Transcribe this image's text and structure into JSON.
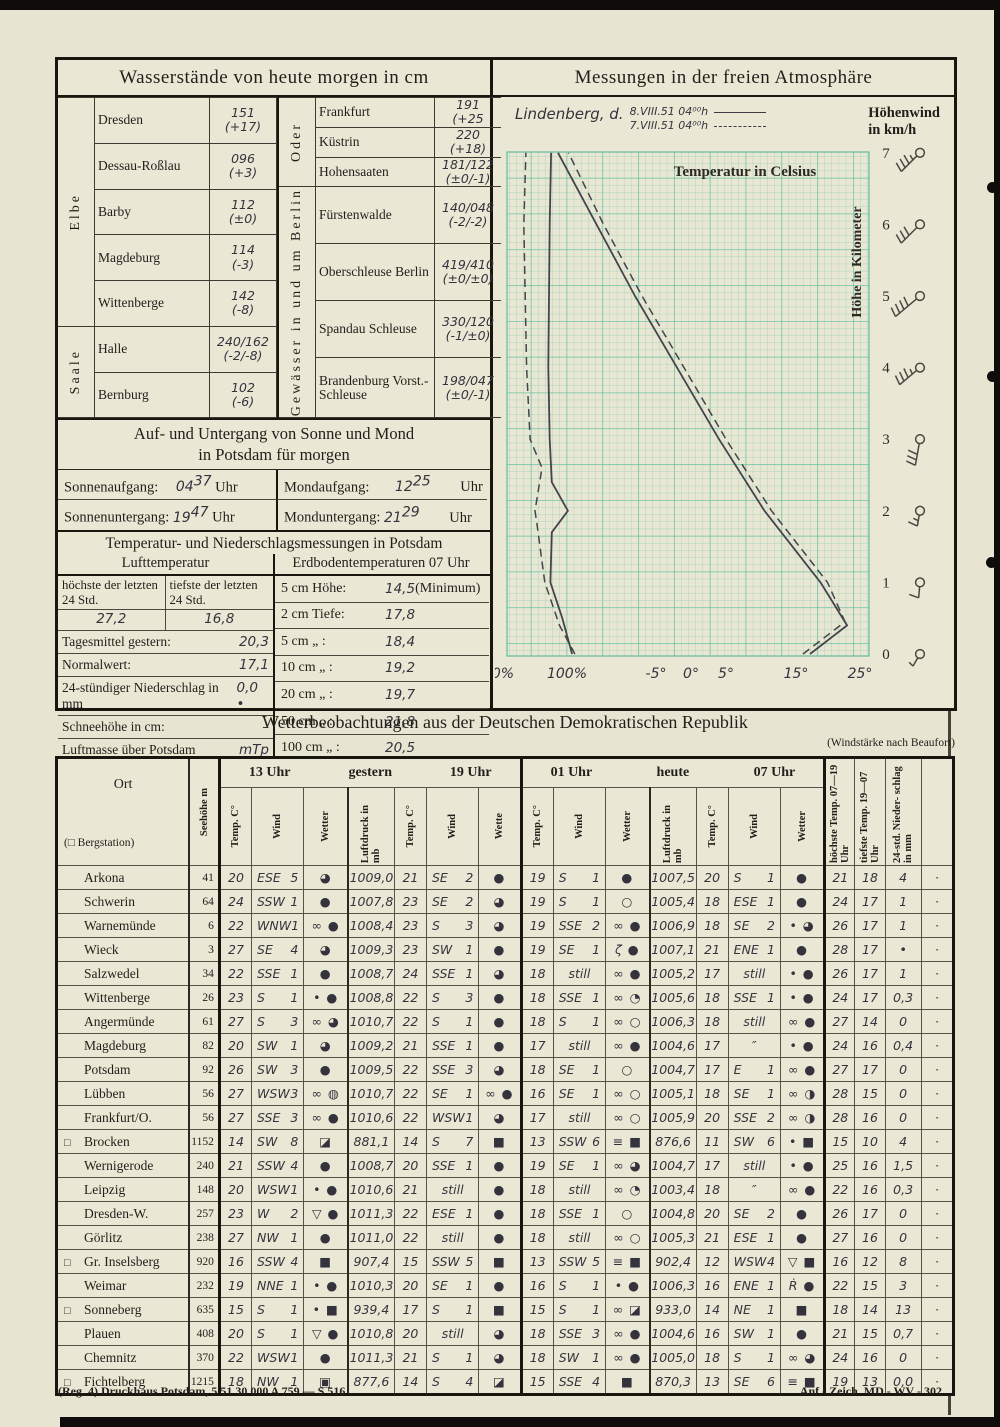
{
  "water": {
    "title": "Wasserstände von heute morgen in cm",
    "groups_left": [
      {
        "river": "Elbe",
        "stations": [
          {
            "name": "Dresden",
            "value": "151",
            "change": "(+17)"
          },
          {
            "name": "Dessau-Roßlau",
            "value": "096",
            "change": "(+3)"
          },
          {
            "name": "Barby",
            "value": "112",
            "change": "(±0)"
          },
          {
            "name": "Magdeburg",
            "value": "114",
            "change": "(-3)"
          },
          {
            "name": "Wittenberge",
            "value": "142",
            "change": "(-8)"
          }
        ]
      },
      {
        "river": "Saale",
        "stations": [
          {
            "name": "Halle",
            "value": "240/162",
            "change": "(-2/-8)"
          },
          {
            "name": "Bernburg",
            "value": "102",
            "change": "(-6)"
          }
        ]
      }
    ],
    "groups_right": [
      {
        "river": "Oder",
        "stations": [
          {
            "name": "Frankfurt",
            "value": "191",
            "change": "(+25"
          },
          {
            "name": "Küstrin",
            "value": "220",
            "change": "(+18)"
          },
          {
            "name": "Hohensaaten",
            "value": "181/122",
            "change": "(±0/-1)"
          }
        ]
      },
      {
        "river": "Gewässer in und um Berlin",
        "stations": [
          {
            "name": "Fürstenwalde",
            "value": "140/048",
            "change": "(-2/-2)"
          },
          {
            "name": "Oberschleuse Berlin",
            "value": "419/410",
            "change": "(±0/±0)"
          },
          {
            "name": "Spandau Schleuse",
            "value": "330/120",
            "change": "(-1/±0)"
          },
          {
            "name": "Brandenburg Vorst.-Schleuse",
            "value": "198/047",
            "change": "(±0/-1)"
          }
        ]
      }
    ]
  },
  "sunmoon": {
    "title_line1": "Auf- und Untergang von Sonne und Mond",
    "title_line2": "in Potsdam für morgen",
    "entries": [
      {
        "label": "Sonnenaufgang:",
        "value": "04",
        "sup": "37",
        "unit": "Uhr"
      },
      {
        "label": "Mondaufgang:",
        "value": "12",
        "sup": "25",
        "unit": "Uhr"
      },
      {
        "label": "Sonnenuntergang:",
        "value": "19",
        "sup": "47",
        "unit": "Uhr"
      },
      {
        "label": "Monduntergang:",
        "value": "21",
        "sup": "29",
        "unit": "Uhr"
      }
    ]
  },
  "potsdam": {
    "title": "Temperatur- und Niederschlagsmessungen in Potsdam",
    "sub_left": "Lufttemperatur",
    "sub_right": "Erdbodentemperaturen 07 Uhr",
    "max_head": "höchste der letzten 24 Std.",
    "min_head": "tiefste der letzten 24 Std.",
    "max_val": "27,2",
    "min_val": "16,8",
    "left_rows": [
      {
        "label": "Tagesmittel gestern:",
        "value": "20,3"
      },
      {
        "label": "Normalwert:",
        "value": "17,1"
      },
      {
        "label": "24-stündiger Niederschlag in mm",
        "value": "0,0 •"
      },
      {
        "label": "Schneehöhe in cm:",
        "value": "–"
      },
      {
        "label": "Luftmasse über Potsdam",
        "value": "mTp"
      }
    ],
    "soil_rows": [
      {
        "label": "5 cm Höhe:",
        "value": "14,5",
        "suffix": "(Minimum)"
      },
      {
        "label": "2 cm Tiefe:",
        "value": "17,8",
        "suffix": ""
      },
      {
        "label": "5 cm  „  :",
        "value": "18,4",
        "suffix": ""
      },
      {
        "label": "10 cm  „  :",
        "value": "19,2",
        "suffix": ""
      },
      {
        "label": "20 cm  „  :",
        "value": "19,7",
        "suffix": ""
      },
      {
        "label": "50 cm  „  :",
        "value": "21,8",
        "suffix": ""
      },
      {
        "label": "100 cm  „  :",
        "value": "20,5",
        "suffix": ""
      }
    ]
  },
  "chart_data": {
    "type": "line",
    "panel_title": "Messungen in der freien Atmosphäre",
    "station": "Lindenberg, d.",
    "legend": [
      {
        "label": "8.VIII.51 04⁰⁰h",
        "style": "solid"
      },
      {
        "label": "7.VIII.51 04⁰⁰h",
        "style": "dashed"
      }
    ],
    "right_header": "Höhenwind in km/h",
    "annotation": "Temperatur in Celsius",
    "ylabel": "Höhe in Kilometer",
    "y_ticks": [
      7,
      6,
      5,
      4,
      3,
      2,
      1,
      0
    ],
    "x_ticks_humidity": [
      "0%",
      "100%"
    ],
    "x_ticks_temp": [
      "-5°",
      "0°",
      "5°",
      "15°",
      "25°"
    ],
    "humidity_range_pct": [
      0,
      100
    ],
    "temp_range_c": [
      -26,
      25
    ],
    "height_range_km": [
      0,
      7
    ],
    "series": [
      {
        "name": "Temperatur 8.VIII.51",
        "style": "solid",
        "km": [
          0,
          0.4,
          1,
          2,
          3,
          4,
          5,
          6,
          7
        ],
        "celsius": [
          17,
          22.3,
          18.5,
          10.5,
          4,
          -2,
          -8,
          -13.5,
          -19
        ]
      },
      {
        "name": "Temperatur 7.VIII.51",
        "style": "dashed",
        "km": [
          0,
          0.45,
          1,
          2,
          3,
          4,
          5,
          6,
          7
        ],
        "celsius": [
          16,
          22,
          19.5,
          11.5,
          5,
          -1,
          -7,
          -12.5,
          -17.5
        ]
      },
      {
        "name": "Feuchte 8.VIII.51",
        "style": "solid",
        "km": [
          0,
          0.5,
          1,
          1.7,
          2,
          2.4,
          3,
          4,
          5,
          6,
          7
        ],
        "percent": [
          93,
          79,
          62,
          64,
          87,
          64,
          61,
          59,
          60,
          61,
          63
        ]
      },
      {
        "name": "Feuchte 7.VIII.51",
        "style": "dashed",
        "km": [
          0,
          0.4,
          1,
          1.8,
          2,
          2.6,
          3,
          4,
          5,
          6,
          7
        ],
        "percent": [
          97,
          75,
          54,
          43,
          40,
          50,
          33,
          28,
          26,
          24,
          27
        ]
      }
    ],
    "wind_barbs": [
      {
        "km": 7,
        "angle": 135,
        "feathers": 3,
        "half": true
      },
      {
        "km": 6,
        "angle": 135,
        "feathers": 3,
        "half": false
      },
      {
        "km": 5,
        "angle": 140,
        "feathers": 4,
        "half": false
      },
      {
        "km": 4,
        "angle": 140,
        "feathers": 3,
        "half": true
      },
      {
        "km": 3,
        "angle": 100,
        "feathers": 3,
        "half": false
      },
      {
        "km": 2,
        "angle": 100,
        "feathers": 1,
        "half": true
      },
      {
        "km": 1,
        "angle": 95,
        "feathers": 1,
        "half": false
      },
      {
        "km": 0,
        "angle": 120,
        "feathers": 0,
        "half": true
      }
    ],
    "colors": {
      "grid_minor": "#93cfb5",
      "grid_major": "#5fbf9e",
      "curve": "#45434b",
      "ink": "#26241d"
    }
  },
  "weather_table": {
    "title": "Wetterbeobachtungen aus der Deutschen Demokratischen Republik",
    "note": "(Windstärke nach Beaufort)",
    "ort_head": "Ort",
    "ort_sub": "(□ Bergstation)",
    "seehoehe_head": "Seehöhe m",
    "group1": [
      "13 Uhr",
      "gestern",
      "19 Uhr"
    ],
    "group2": [
      "01 Uhr",
      "heute",
      "07 Uhr"
    ],
    "col_heads": [
      "Temp. C°",
      "Wind",
      "Wetter",
      "Luftdruck in mb",
      "Temp. C°",
      "Wind",
      "Wette",
      "Temp. C°",
      "Wind",
      "Wetter",
      "Luftdruck in mb",
      "Temp. C°",
      "Wind",
      "Wetter"
    ],
    "tail_heads": [
      "höchste Temp. 07—19 Uhr",
      "tiefste Temp. 19—07 Uhr",
      "24-std. Nieder- schlag in mm",
      ""
    ],
    "rows": [
      {
        "flag": false,
        "ort": "Arkona",
        "see": "41",
        "c": [
          "20",
          "ESE 5",
          "◕",
          "1009,0",
          "21",
          "SE 2",
          "●",
          "19",
          "S 1",
          "●",
          "1007,5",
          "20",
          "S 1",
          "●",
          "21",
          "18",
          "4",
          "·"
        ]
      },
      {
        "flag": false,
        "ort": "Schwerin",
        "see": "64",
        "c": [
          "24",
          "SSW 1",
          "●",
          "1007,8",
          "23",
          "SE 2",
          "◕",
          "19",
          "S 1",
          "○",
          "1005,4",
          "18",
          "ESE 1",
          "●",
          "24",
          "17",
          "1",
          "·"
        ]
      },
      {
        "flag": false,
        "ort": "Warnemünde",
        "see": "6",
        "c": [
          "22",
          "WNW 1",
          "∞ ●",
          "1008,4",
          "23",
          "S 3",
          "◕",
          "19",
          "SSE 2",
          "∞ ●",
          "1006,9",
          "18",
          "SE 2",
          "• ◕",
          "26",
          "17",
          "1",
          "·"
        ]
      },
      {
        "flag": false,
        "ort": "Wieck",
        "see": "3",
        "c": [
          "27",
          "SE 4",
          "◕",
          "1009,3",
          "23",
          "SW 1",
          "●",
          "19",
          "SE 1",
          "ζ ●",
          "1007,1",
          "21",
          "ENE 1",
          "●",
          "28",
          "17",
          "•",
          "·"
        ]
      },
      {
        "flag": false,
        "ort": "Salzwedel",
        "see": "34",
        "c": [
          "22",
          "SSE 1",
          "●",
          "1008,7",
          "24",
          "SSE 1",
          "◕",
          "18",
          "still",
          "∞ ●",
          "1005,2",
          "17",
          "still",
          "• ●",
          "26",
          "17",
          "1",
          "·"
        ]
      },
      {
        "flag": false,
        "ort": "Wittenberge",
        "see": "26",
        "c": [
          "23",
          "S 1",
          "• ●",
          "1008,8",
          "22",
          "S 3",
          "●",
          "18",
          "SSE 1",
          "∞ ◔",
          "1005,6",
          "18",
          "SSE 1",
          "• ●",
          "24",
          "17",
          "0,3",
          "·"
        ]
      },
      {
        "flag": false,
        "ort": "Angermünde",
        "see": "61",
        "c": [
          "27",
          "S 3",
          "∞ ◕",
          "1010,7",
          "22",
          "S 1",
          "●",
          "18",
          "S 1",
          "∞ ○",
          "1006,3",
          "18",
          "still",
          "∞ ●",
          "27",
          "14",
          "0",
          "·"
        ]
      },
      {
        "flag": false,
        "ort": "Magdeburg",
        "see": "82",
        "c": [
          "20",
          "SW 1",
          "◕",
          "1009,2",
          "21",
          "SSE 1",
          "●",
          "17",
          "still",
          "∞ ●",
          "1004,6",
          "17",
          "″",
          "• ●",
          "24",
          "16",
          "0,4",
          "·"
        ]
      },
      {
        "flag": false,
        "ort": "Potsdam",
        "see": "92",
        "c": [
          "26",
          "SW 3",
          "●",
          "1009,5",
          "22",
          "SSE 3",
          "◕",
          "18",
          "SE 1",
          "○",
          "1004,7",
          "17",
          "E 1",
          "∞ ●",
          "27",
          "17",
          "0",
          "·"
        ]
      },
      {
        "flag": false,
        "ort": "Lübben",
        "see": "56",
        "c": [
          "27",
          "WSW 3",
          "∞ ◍",
          "1010,7",
          "22",
          "SE 1",
          "∞ ●",
          "16",
          "SE 1",
          "∞ ○",
          "1005,1",
          "18",
          "SE 1",
          "∞ ◑",
          "28",
          "15",
          "0",
          "·"
        ]
      },
      {
        "flag": false,
        "ort": "Frankfurt/O.",
        "see": "56",
        "c": [
          "27",
          "SSE 3",
          "∞ ●",
          "1010,6",
          "22",
          "WSW 1",
          "◕",
          "17",
          "still",
          "∞ ○",
          "1005,9",
          "20",
          "SSE 2",
          "∞ ◑",
          "28",
          "16",
          "0",
          "·"
        ]
      },
      {
        "flag": true,
        "ort": "Brocken",
        "see": "1152",
        "c": [
          "14",
          "SW 8",
          "◪",
          "881,1",
          "14",
          "S 7",
          "■",
          "13",
          "SSW 6",
          "≡ ■",
          "876,6",
          "11",
          "SW 6",
          "• ■",
          "15",
          "10",
          "4",
          "·"
        ]
      },
      {
        "flag": false,
        "ort": "Wernigerode",
        "see": "240",
        "c": [
          "21",
          "SSW 4",
          "●",
          "1008,7",
          "20",
          "SSE 1",
          "●",
          "19",
          "SE 1",
          "∞ ◕",
          "1004,7",
          "17",
          "still",
          "• ●",
          "25",
          "16",
          "1,5",
          "·"
        ]
      },
      {
        "flag": false,
        "ort": "Leipzig",
        "see": "148",
        "c": [
          "20",
          "WSW 1",
          "• ●",
          "1010,6",
          "21",
          "still",
          "●",
          "18",
          "still",
          "∞ ◔",
          "1003,4",
          "18",
          "″",
          "∞ ●",
          "22",
          "16",
          "0,3",
          "·"
        ]
      },
      {
        "flag": false,
        "ort": "Dresden-W.",
        "see": "257",
        "c": [
          "23",
          "W 2",
          "▽ ●",
          "1011,3",
          "22",
          "ESE 1",
          "●",
          "18",
          "SSE 1",
          "○",
          "1004,8",
          "20",
          "SE 2",
          "●",
          "26",
          "17",
          "0",
          "·"
        ]
      },
      {
        "flag": false,
        "ort": "Görlitz",
        "see": "238",
        "c": [
          "27",
          "NW 1",
          "●",
          "1011,0",
          "22",
          "still",
          "●",
          "18",
          "still",
          "∞ ○",
          "1005,3",
          "21",
          "ESE 1",
          "●",
          "27",
          "16",
          "0",
          "·"
        ]
      },
      {
        "flag": true,
        "ort": "Gr. Inselsberg",
        "see": "920",
        "c": [
          "16",
          "SSW 4",
          "■",
          "907,4",
          "15",
          "SSW 5",
          "■",
          "13",
          "SSW 5",
          "≡ ■",
          "902,4",
          "12",
          "WSW 4",
          "▽ ■",
          "16",
          "12",
          "8",
          "·"
        ]
      },
      {
        "flag": false,
        "ort": "Weimar",
        "see": "232",
        "c": [
          "19",
          "NNE 1",
          "• ●",
          "1010,3",
          "20",
          "SE 1",
          "●",
          "16",
          "S 1",
          "• ●",
          "1006,3",
          "16",
          "ENE 1",
          "Ṙ ●",
          "22",
          "15",
          "3",
          "·"
        ]
      },
      {
        "flag": true,
        "ort": "Sonneberg",
        "see": "635",
        "c": [
          "15",
          "S 1",
          "• ■",
          "939,4",
          "17",
          "S 1",
          "■",
          "15",
          "S 1",
          "∞ ◪",
          "933,0",
          "14",
          "NE 1",
          "■",
          "18",
          "14",
          "13",
          "·"
        ]
      },
      {
        "flag": false,
        "ort": "Plauen",
        "see": "408",
        "c": [
          "20",
          "S 1",
          "▽ ●",
          "1010,8",
          "20",
          "still",
          "◕",
          "18",
          "SSE 3",
          "∞ ●",
          "1004,6",
          "16",
          "SW 1",
          "●",
          "21",
          "15",
          "0,7",
          "·"
        ]
      },
      {
        "flag": false,
        "ort": "Chemnitz",
        "see": "370",
        "c": [
          "22",
          "WSW 1",
          "●",
          "1011,3",
          "21",
          "S 1",
          "◕",
          "18",
          "SW 1",
          "∞ ●",
          "1005,0",
          "18",
          "S 1",
          "∞ ◕",
          "24",
          "16",
          "0",
          "·"
        ]
      },
      {
        "flag": true,
        "ort": "Fichtelberg",
        "see": "1215",
        "c": [
          "18",
          "NW 1",
          "▣",
          "877,6",
          "14",
          "S 4",
          "◪",
          "15",
          "SSE 4",
          "■",
          "870,3",
          "13",
          "SE 6",
          "≡ ■",
          "19",
          "13",
          "0,0",
          "·"
        ]
      }
    ]
  },
  "footer": {
    "left": "(Reg. 4) Druckhaus Potsdam,   5 51 30 000 A 759 — S 516",
    "right": "Anf.- Zeich. MD - WV - 302"
  }
}
